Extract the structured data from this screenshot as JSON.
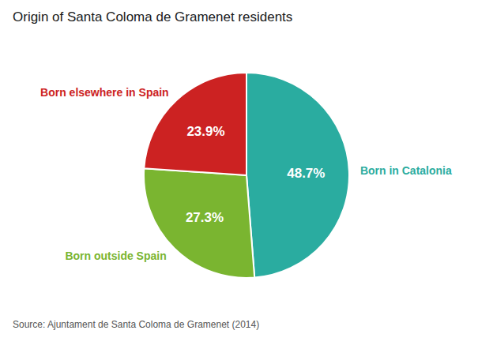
{
  "chart_data": {
    "type": "pie",
    "title": "Origin of Santa Coloma de Gramenet residents",
    "categories": [
      "Born in Catalonia",
      "Born outside Spain",
      "Born elsewhere in Spain"
    ],
    "values": [
      48.7,
      27.3,
      23.9
    ],
    "value_labels": [
      "48.7%",
      "27.3%",
      "23.9%"
    ],
    "colors": [
      "#2aaca0",
      "#7ab530",
      "#cc2222"
    ],
    "data_labels": true,
    "annotations": [
      "Source: Ajuntament de Santa Coloma de Gramenet (2014)"
    ]
  }
}
